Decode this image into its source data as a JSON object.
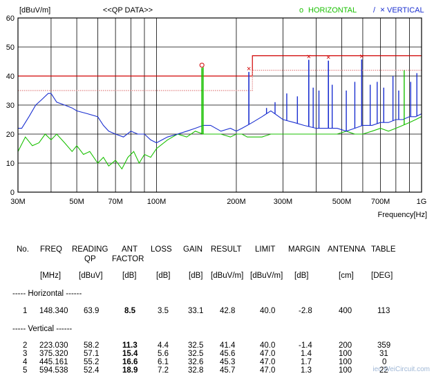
{
  "chart_data": {
    "type": "line",
    "title": "<<QP DATA>>",
    "ylabel": "[dBuV/m]",
    "xlabel": "Frequency[Hz]",
    "x_scale": "log",
    "xlim_hz": [
      30000000,
      1000000000
    ],
    "ylim": [
      0,
      60
    ],
    "y_ticks": [
      0,
      10,
      20,
      30,
      40,
      50,
      60
    ],
    "x_ticks": [
      {
        "label": "30M",
        "hz": 30000000
      },
      {
        "label": "50M",
        "hz": 50000000
      },
      {
        "label": "70M",
        "hz": 70000000
      },
      {
        "label": "100M",
        "hz": 100000000
      },
      {
        "label": "200M",
        "hz": 200000000
      },
      {
        "label": "300M",
        "hz": 300000000
      },
      {
        "label": "500M",
        "hz": 500000000
      },
      {
        "label": "700M",
        "hz": 700000000
      },
      {
        "label": "1G",
        "hz": 1000000000
      }
    ],
    "grid": true,
    "legend": [
      {
        "marker": "o",
        "label": "HORIZONTAL",
        "color": "#18c000"
      },
      {
        "marker": "/",
        "label": "",
        "color": "#1a2fd0"
      },
      {
        "marker": "×",
        "label": "VERTICAL",
        "color": "#1a2fd0"
      }
    ],
    "limit_line": {
      "color": "#d00000",
      "segments": [
        {
          "x": [
            30000000,
            230000000
          ],
          "y": 40
        },
        {
          "x": [
            230000000,
            1000000000
          ],
          "y": 47
        }
      ]
    },
    "margin_line": {
      "color": "#e08080",
      "segments": [
        {
          "x": [
            30000000,
            230000000
          ],
          "y": 35
        },
        {
          "x": [
            230000000,
            1000000000
          ],
          "y": 42
        }
      ]
    },
    "series": [
      {
        "name": "HORIZONTAL",
        "color": "#18c000",
        "x": [
          30000000,
          32000000,
          34000000,
          36000000,
          38000000,
          40000000,
          42000000,
          45000000,
          48000000,
          50000000,
          53000000,
          56000000,
          60000000,
          63000000,
          66000000,
          70000000,
          74000000,
          78000000,
          82000000,
          86000000,
          90000000,
          95000000,
          100000000,
          110000000,
          120000000,
          130000000,
          140000000,
          150000000,
          160000000,
          175000000,
          190000000,
          200000000,
          210000000,
          220000000,
          230000000,
          250000000,
          270000000,
          300000000,
          330000000,
          360000000,
          400000000,
          440000000,
          480000000,
          520000000,
          560000000,
          600000000,
          650000000,
          700000000,
          750000000,
          800000000,
          850000000,
          900000000,
          950000000,
          1000000000
        ],
        "y": [
          14,
          19,
          16,
          17,
          20,
          18,
          20,
          17,
          14,
          16,
          13,
          14,
          10,
          12,
          9,
          11,
          8,
          12,
          14,
          10,
          13,
          12,
          15,
          18,
          20,
          19,
          21,
          20,
          20,
          20,
          19,
          20,
          20,
          19,
          19,
          19,
          20,
          20,
          20,
          20,
          20,
          20,
          20,
          21,
          20,
          20,
          21,
          22,
          21,
          22,
          23,
          24,
          25,
          26
        ]
      },
      {
        "name": "VERTICAL",
        "color": "#1a2fd0",
        "x": [
          30000000,
          31000000,
          33000000,
          35000000,
          37000000,
          39000000,
          40000000,
          42000000,
          45000000,
          48000000,
          50000000,
          55000000,
          60000000,
          63000000,
          66000000,
          70000000,
          75000000,
          80000000,
          85000000,
          90000000,
          95000000,
          100000000,
          110000000,
          120000000,
          130000000,
          140000000,
          150000000,
          160000000,
          175000000,
          190000000,
          200000000,
          210000000,
          220000000,
          230000000,
          250000000,
          270000000,
          300000000,
          330000000,
          360000000,
          400000000,
          440000000,
          480000000,
          520000000,
          560000000,
          600000000,
          650000000,
          700000000,
          750000000,
          800000000,
          850000000,
          900000000,
          950000000,
          1000000000
        ],
        "y": [
          22,
          22,
          26,
          30,
          32,
          34,
          34,
          31,
          30,
          29,
          28,
          27,
          26,
          23,
          21,
          20,
          19,
          21,
          20,
          20,
          18,
          17,
          19,
          20,
          21,
          22,
          23,
          23,
          21,
          22,
          21,
          22,
          23,
          24,
          26,
          28,
          25,
          24,
          23,
          22,
          22,
          22,
          21,
          22,
          23,
          23,
          24,
          24,
          25,
          25,
          26,
          26,
          27
        ]
      }
    ],
    "peaks": [
      {
        "x_hz": 148340000,
        "y": 42.8,
        "series": "HORIZONTAL",
        "marker": "o"
      },
      {
        "x_hz": 223030000,
        "y": 41.4,
        "series": "VERTICAL",
        "marker": "×"
      },
      {
        "x_hz": 375320000,
        "y": 45.6,
        "series": "VERTICAL",
        "marker": "×"
      },
      {
        "x_hz": 445161000,
        "y": 45.3,
        "series": "VERTICAL",
        "marker": "×"
      },
      {
        "x_hz": 594538000,
        "y": 45.7,
        "series": "VERTICAL",
        "marker": "×"
      }
    ],
    "spikes": [
      {
        "x_hz": 150000000,
        "y": 43,
        "series": "HORIZONTAL"
      },
      {
        "x_hz": 260000000,
        "y": 29,
        "series": "VERTICAL"
      },
      {
        "x_hz": 280000000,
        "y": 31,
        "series": "VERTICAL"
      },
      {
        "x_hz": 310000000,
        "y": 34,
        "series": "VERTICAL"
      },
      {
        "x_hz": 340000000,
        "y": 33,
        "series": "VERTICAL"
      },
      {
        "x_hz": 390000000,
        "y": 36,
        "series": "VERTICAL"
      },
      {
        "x_hz": 410000000,
        "y": 35,
        "series": "VERTICAL"
      },
      {
        "x_hz": 460000000,
        "y": 37,
        "series": "VERTICAL"
      },
      {
        "x_hz": 520000000,
        "y": 35,
        "series": "VERTICAL"
      },
      {
        "x_hz": 560000000,
        "y": 38,
        "series": "VERTICAL"
      },
      {
        "x_hz": 640000000,
        "y": 37,
        "series": "VERTICAL"
      },
      {
        "x_hz": 680000000,
        "y": 38,
        "series": "VERTICAL"
      },
      {
        "x_hz": 720000000,
        "y": 36,
        "series": "VERTICAL"
      },
      {
        "x_hz": 780000000,
        "y": 40,
        "series": "VERTICAL"
      },
      {
        "x_hz": 820000000,
        "y": 35,
        "series": "VERTICAL"
      },
      {
        "x_hz": 860000000,
        "y": 42,
        "series": "HORIZONTAL"
      },
      {
        "x_hz": 910000000,
        "y": 38,
        "series": "VERTICAL"
      },
      {
        "x_hz": 960000000,
        "y": 41,
        "series": "VERTICAL"
      }
    ]
  },
  "table": {
    "headers": {
      "no": "No.",
      "freq": "FREQ",
      "reading1": "READING",
      "reading2": "QP",
      "ant1": "ANT",
      "ant2": "FACTOR",
      "loss": "LOSS",
      "gain": "GAIN",
      "result": "RESULT",
      "limit": "LIMIT",
      "margin": "MARGIN",
      "antenna": "ANTENNA",
      "table": "TABLE"
    },
    "units": {
      "freq": "[MHz]",
      "reading": "[dBuV]",
      "ant": "[dB]",
      "loss": "[dB]",
      "gain": "[dB]",
      "result": "[dBuV/m]",
      "limit": "[dBuV/m]",
      "margin": "[dB]",
      "antenna": "[cm]",
      "table": "[DEG]"
    },
    "section_h": "----- Horizontal ------",
    "section_v": "----- Vertical ------",
    "rows": [
      {
        "no": "1",
        "freq": "148.340",
        "reading": "63.9",
        "ant": "8.5",
        "loss": "3.5",
        "gain": "33.1",
        "result": "42.8",
        "limit": "40.0",
        "margin": "-2.8",
        "antenna": "400",
        "table": "113"
      },
      {
        "no": "2",
        "freq": "223.030",
        "reading": "58.2",
        "ant": "11.3",
        "loss": "4.4",
        "gain": "32.5",
        "result": "41.4",
        "limit": "40.0",
        "margin": "-1.4",
        "antenna": "200",
        "table": "359"
      },
      {
        "no": "3",
        "freq": "375.320",
        "reading": "57.1",
        "ant": "15.4",
        "loss": "5.6",
        "gain": "32.5",
        "result": "45.6",
        "limit": "47.0",
        "margin": "1.4",
        "antenna": "100",
        "table": "31"
      },
      {
        "no": "4",
        "freq": "445.161",
        "reading": "55.2",
        "ant": "16.6",
        "loss": "6.1",
        "gain": "32.6",
        "result": "45.3",
        "limit": "47.0",
        "margin": "1.7",
        "antenna": "100",
        "table": "0"
      },
      {
        "no": "5",
        "freq": "594.538",
        "reading": "52.4",
        "ant": "18.9",
        "loss": "7.2",
        "gain": "32.8",
        "result": "45.7",
        "limit": "47.0",
        "margin": "1.3",
        "antenna": "100",
        "table": "22"
      }
    ]
  },
  "watermark": "iec.WeiCircuit.com"
}
